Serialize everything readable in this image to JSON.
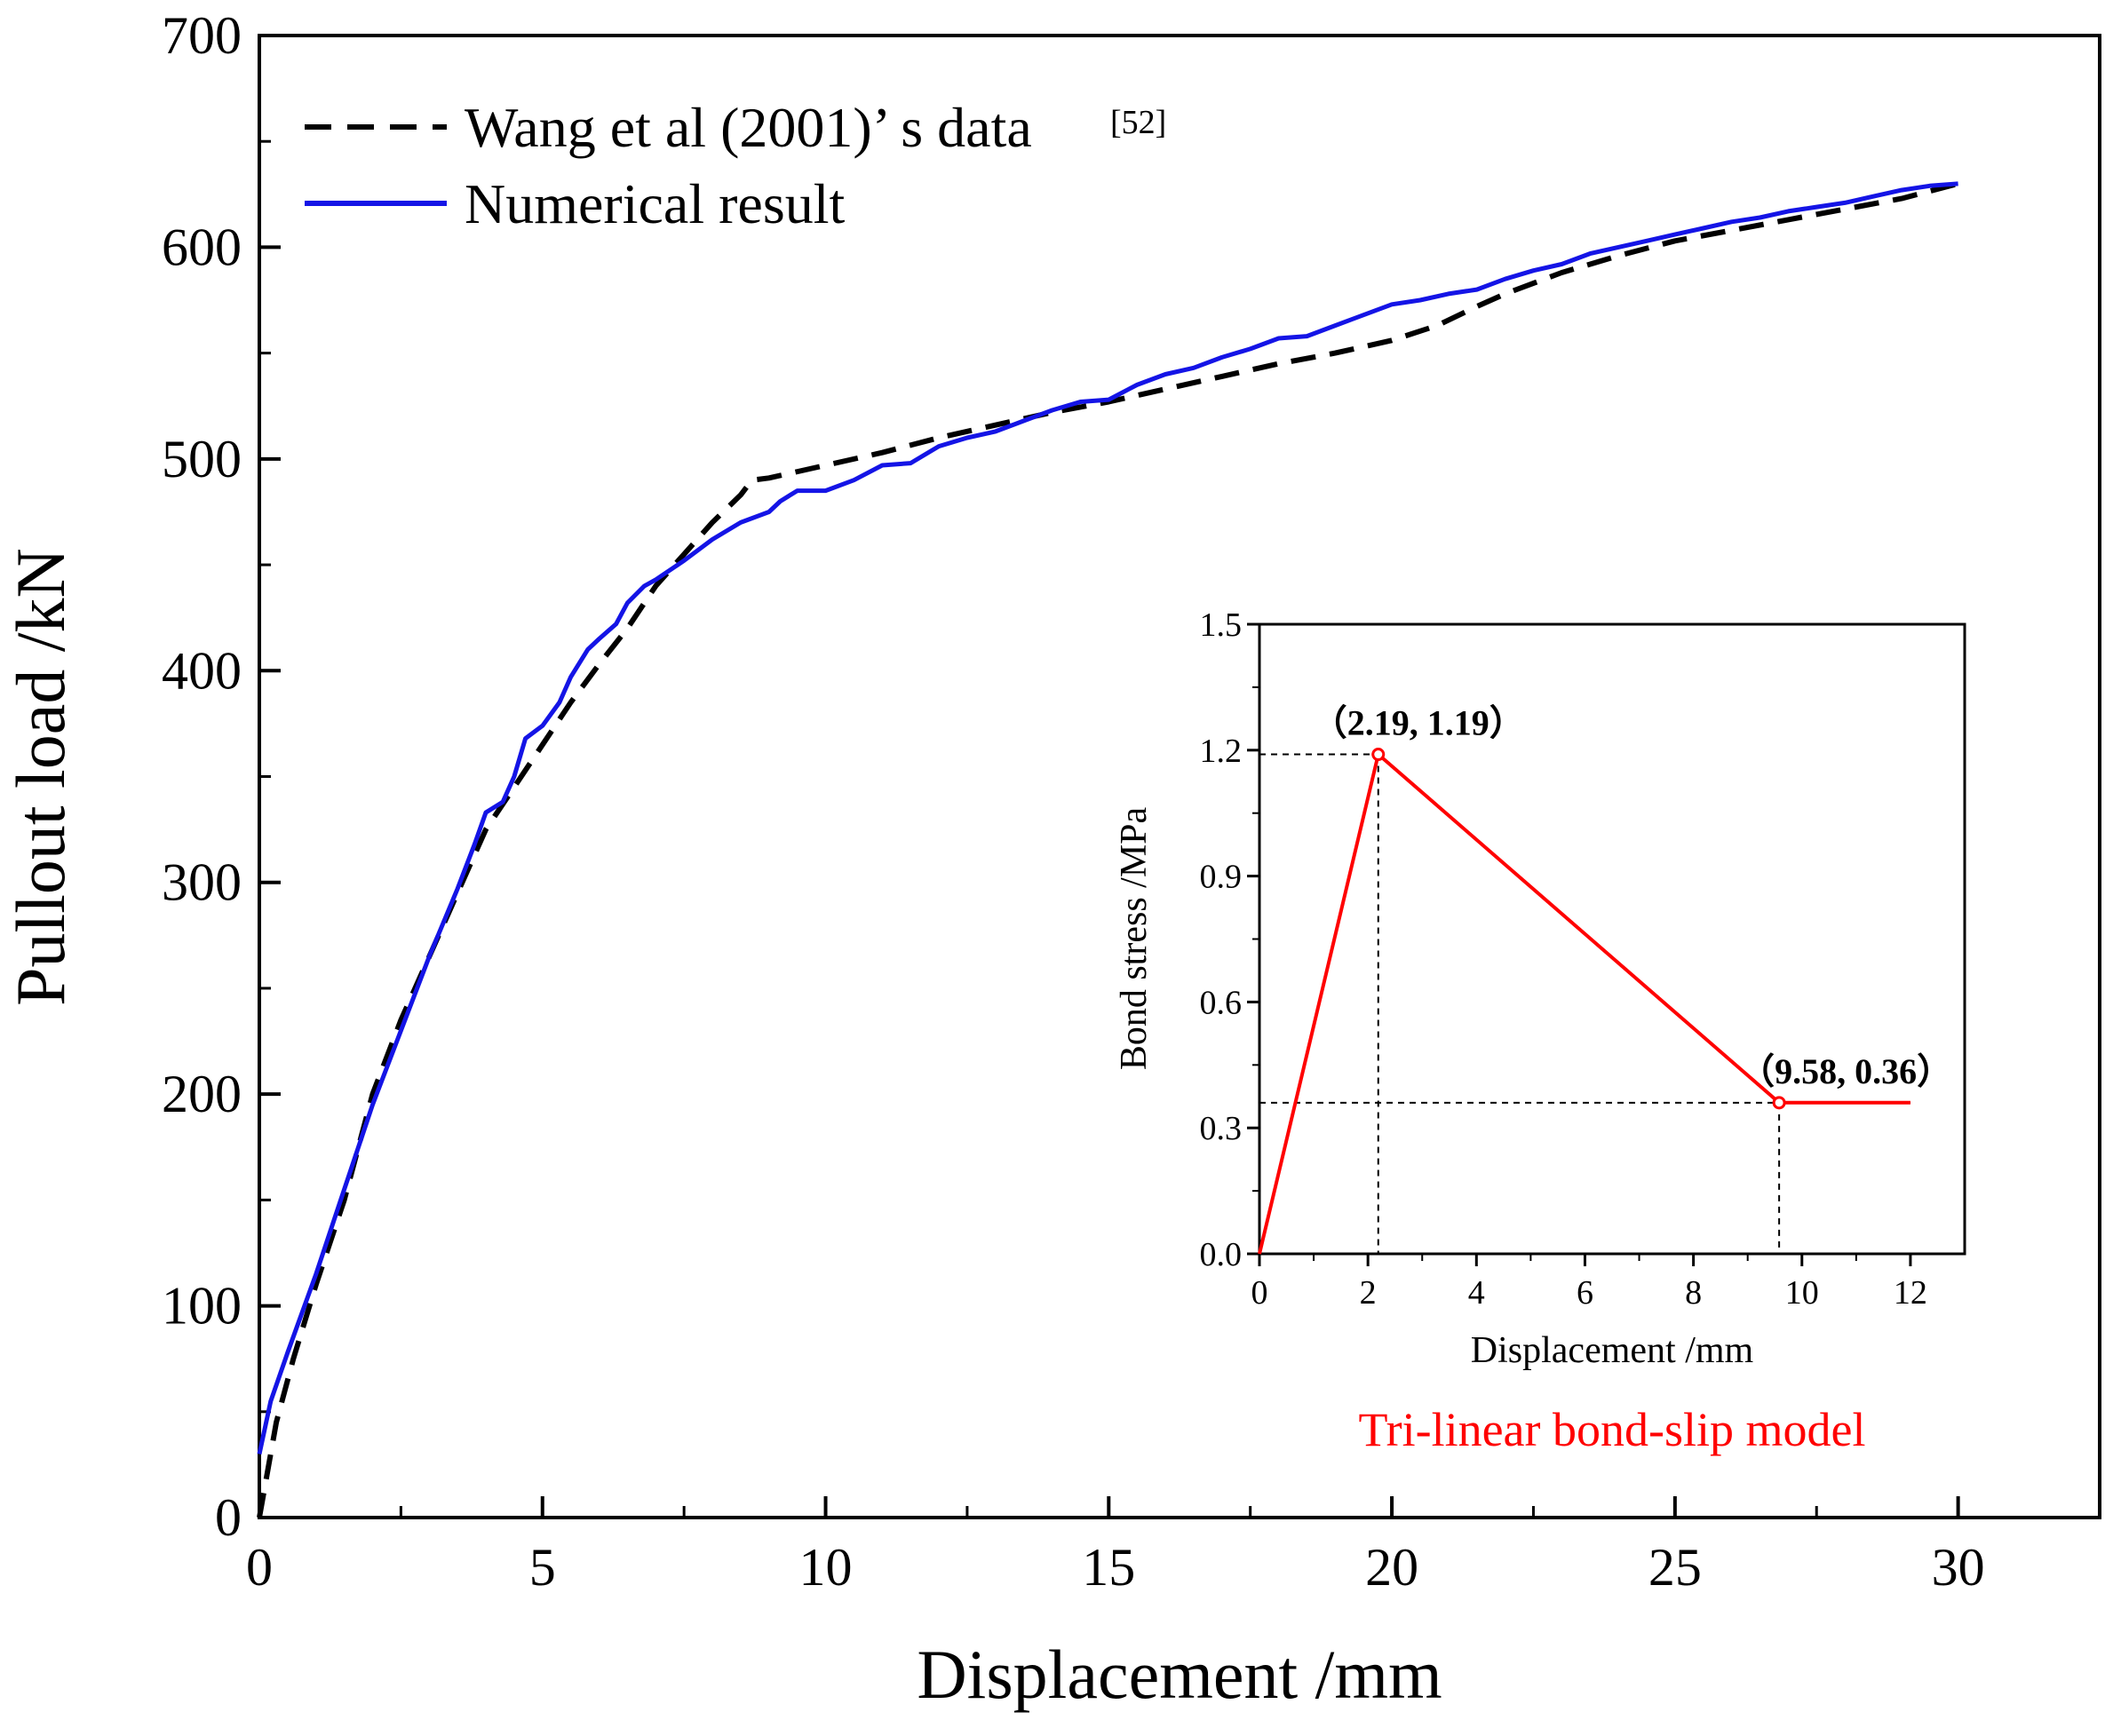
{
  "chart_data": [
    {
      "type": "line",
      "id": "main",
      "xlabel": "Displacement /mm",
      "ylabel": "Pullout load /kN",
      "xlim": [
        0,
        32.5
      ],
      "ylim": [
        0,
        700
      ],
      "xticks": [
        0,
        5,
        10,
        15,
        20,
        25,
        30
      ],
      "yticks": [
        0,
        100,
        200,
        300,
        400,
        500,
        600,
        700
      ],
      "legend_position": "top-left",
      "series": [
        {
          "name": "Wang et al (2001)’ s data",
          "ref": "[52]",
          "color": "#000000",
          "style": "dashed",
          "x": [
            0,
            0.3,
            0.6,
            1.0,
            1.5,
            2.0,
            2.5,
            3.0,
            3.5,
            4.0,
            4.5,
            5.0,
            5.5,
            6.0,
            6.5,
            7.0,
            7.5,
            8.0,
            8.5,
            8.7,
            9.0,
            10.0,
            11.0,
            12.0,
            13.0,
            14.0,
            15.0,
            16.0,
            17.0,
            18.0,
            19.0,
            20.0,
            20.8,
            21.5,
            22.0,
            23.0,
            24.0,
            25.0,
            26.0,
            27.0,
            28.0,
            29.0,
            30.0
          ],
          "y": [
            0,
            45,
            75,
            110,
            150,
            200,
            235,
            265,
            295,
            325,
            345,
            365,
            385,
            403,
            420,
            440,
            455,
            470,
            483,
            490,
            491,
            497,
            503,
            510,
            516,
            522,
            527,
            533,
            539,
            545,
            550,
            556,
            563,
            572,
            578,
            588,
            596,
            603,
            608,
            613,
            618,
            623,
            630
          ]
        },
        {
          "name": "Numerical result",
          "color": "#1414e6",
          "style": "solid",
          "x": [
            0,
            0.2,
            0.5,
            1.0,
            1.5,
            2.0,
            2.5,
            3.0,
            3.5,
            3.8,
            4.0,
            4.3,
            4.5,
            4.7,
            5.0,
            5.3,
            5.5,
            5.8,
            6.0,
            6.3,
            6.5,
            6.8,
            7.0,
            7.5,
            8.0,
            8.5,
            9.0,
            9.2,
            9.5,
            10.0,
            10.5,
            11.0,
            11.5,
            12.0,
            12.5,
            13.0,
            13.5,
            14.0,
            14.5,
            15.0,
            15.5,
            16.0,
            16.5,
            17.0,
            17.5,
            18.0,
            18.5,
            19.0,
            19.5,
            20.0,
            20.5,
            21.0,
            21.5,
            22.0,
            22.5,
            23.0,
            23.5,
            24.0,
            24.5,
            25.0,
            25.5,
            26.0,
            26.5,
            27.0,
            27.5,
            28.0,
            28.5,
            29.0,
            29.5,
            30.0
          ],
          "y": [
            30,
            55,
            78,
            115,
            155,
            195,
            230,
            265,
            297,
            318,
            333,
            338,
            350,
            368,
            374,
            385,
            397,
            410,
            415,
            422,
            432,
            440,
            443,
            452,
            462,
            470,
            475,
            480,
            485,
            485,
            490,
            497,
            498,
            506,
            510,
            513,
            518,
            523,
            527,
            528,
            535,
            540,
            543,
            548,
            552,
            557,
            558,
            563,
            568,
            573,
            575,
            578,
            580,
            585,
            589,
            592,
            597,
            600,
            603,
            606,
            609,
            612,
            614,
            617,
            619,
            621,
            624,
            627,
            629,
            630
          ]
        }
      ]
    },
    {
      "type": "line",
      "id": "inset",
      "title": "Tri-linear bond-slip model",
      "xlabel": "Displacement /mm",
      "ylabel": "Bond stress /MPa",
      "xlim": [
        0,
        13
      ],
      "ylim": [
        0,
        1.5
      ],
      "xticks": [
        0,
        2,
        4,
        6,
        8,
        10,
        12
      ],
      "yticks": [
        0.0,
        0.3,
        0.6,
        0.9,
        1.2,
        1.5
      ],
      "ytick_labels": [
        "0.0",
        "0.3",
        "0.6",
        "0.9",
        "1.2",
        "1.5"
      ],
      "series": [
        {
          "name": "bond-slip",
          "color": "#ff0000",
          "style": "solid",
          "x": [
            0,
            2.19,
            9.58,
            12.0
          ],
          "y": [
            0,
            1.19,
            0.36,
            0.36
          ]
        }
      ],
      "annotations": [
        {
          "label": "（2.19, 1.19）",
          "x": 2.19,
          "y": 1.19
        },
        {
          "label": "（9.58, 0.36）",
          "x": 9.58,
          "y": 0.36
        }
      ]
    }
  ]
}
